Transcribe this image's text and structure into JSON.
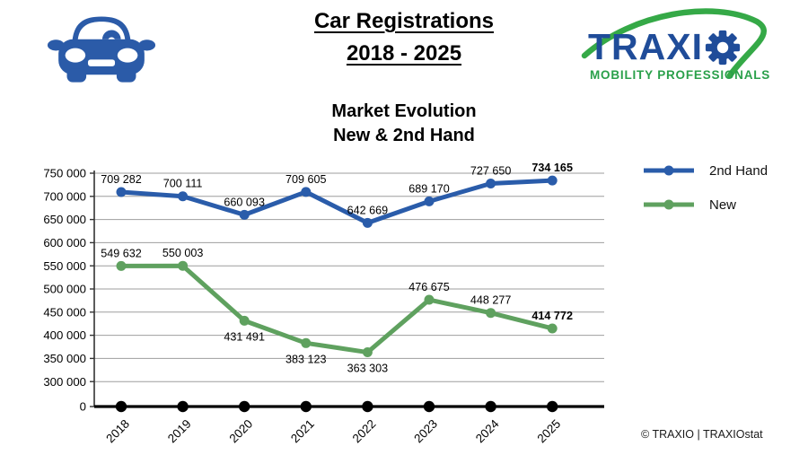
{
  "header": {
    "title_line1": "Car Registrations",
    "title_line2": "2018 - 2025",
    "car_icon_color": "#2B5BA8",
    "logo": {
      "brand_prefix": "TRAXI",
      "tagline": "MOBILITY PROFESSIONALS",
      "brand_color": "#1F4C99",
      "tagline_color": "#2AA04A",
      "swoosh_color": "#35A947"
    }
  },
  "chart_data": {
    "type": "line",
    "title_line1": "Market Evolution",
    "title_line2": "New & 2nd Hand",
    "categories": [
      "2018",
      "2019",
      "2020",
      "2021",
      "2022",
      "2023",
      "2024",
      "2025"
    ],
    "series": [
      {
        "name": "2nd Hand",
        "color": "#2A5CAA",
        "values": [
          709282,
          700111,
          660093,
          709605,
          642669,
          689170,
          727650,
          734165
        ],
        "labels": [
          "709 282",
          "700 111",
          "660 093",
          "709 605",
          "642 669",
          "689 170",
          "727 650",
          "734 165"
        ]
      },
      {
        "name": "New",
        "color": "#5FA15F",
        "values": [
          549632,
          550003,
          431491,
          383123,
          363303,
          476675,
          448277,
          414772
        ],
        "labels": [
          "549 632",
          "550 003",
          "431 491",
          "383 123",
          "363 303",
          "476 675",
          "448 277",
          "414 772"
        ]
      }
    ],
    "y_ticks": [
      "750 000",
      "700 000",
      "650 000",
      "600 000",
      "550 000",
      "500 000",
      "450 000",
      "400 000",
      "350 000",
      "300 000",
      "0"
    ],
    "y_tick_values": [
      750000,
      700000,
      650000,
      600000,
      550000,
      500000,
      450000,
      400000,
      350000,
      300000,
      0
    ],
    "axis_break": true,
    "ylim": [
      300000,
      750000
    ],
    "grid": true,
    "gridline_color": "#9E9E9E",
    "axis_color": "#000000",
    "x_axis_marker_color": "#000000",
    "legend_position": "right"
  },
  "footer": {
    "credit": "© TRAXIO | TRAXIOstat"
  }
}
